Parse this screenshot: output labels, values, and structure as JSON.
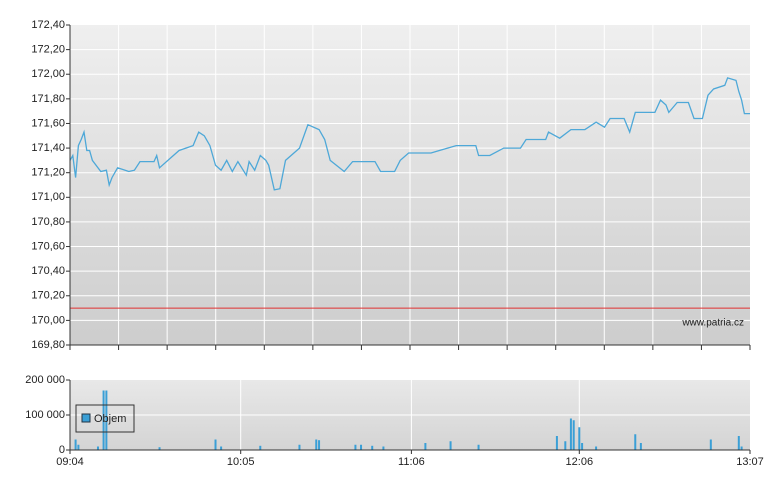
{
  "chart_data": [
    {
      "type": "line",
      "color": "#4ea8d8",
      "xlim": [
        "09:04",
        "13:07"
      ],
      "ylim": [
        169.8,
        172.4
      ],
      "yticks": [
        {
          "value": 169.8,
          "label": "169,80"
        },
        {
          "value": 170.0,
          "label": "170,00"
        },
        {
          "value": 170.2,
          "label": "170,20"
        },
        {
          "value": 170.4,
          "label": "170,40"
        },
        {
          "value": 170.6,
          "label": "170,60"
        },
        {
          "value": 170.8,
          "label": "170,80"
        },
        {
          "value": 171.0,
          "label": "171,00"
        },
        {
          "value": 171.2,
          "label": "171,20"
        },
        {
          "value": 171.4,
          "label": "171,40"
        },
        {
          "value": 171.6,
          "label": "171,60"
        },
        {
          "value": 171.8,
          "label": "171,80"
        },
        {
          "value": 172.0,
          "label": "172,00"
        },
        {
          "value": 172.2,
          "label": "172,20"
        },
        {
          "value": 172.4,
          "label": "172,40"
        }
      ],
      "grid": true,
      "reference_line": {
        "value": 170.1,
        "color": "#e03030"
      },
      "annotation": "www.patria.cz",
      "x": [
        "09:04",
        "09:05",
        "09:06",
        "09:07",
        "09:08",
        "09:09",
        "09:10",
        "09:11",
        "09:12",
        "09:15",
        "09:17",
        "09:18",
        "09:19",
        "09:21",
        "09:25",
        "09:27",
        "09:29",
        "09:34",
        "09:35",
        "09:36",
        "09:40",
        "09:43",
        "09:48",
        "09:50",
        "09:52",
        "09:54",
        "09:56",
        "09:58",
        "10:00",
        "10:02",
        "10:04",
        "10:07",
        "10:08",
        "10:10",
        "10:12",
        "10:14",
        "10:15",
        "10:17",
        "10:19",
        "10:21",
        "10:26",
        "10:29",
        "10:33",
        "10:35",
        "10:37",
        "10:42",
        "10:45",
        "10:53",
        "10:55",
        "11:00",
        "11:02",
        "11:05",
        "11:13",
        "11:16",
        "11:22",
        "11:29",
        "11:30",
        "11:34",
        "11:39",
        "11:45",
        "11:47",
        "11:54",
        "11:55",
        "11:59",
        "12:03",
        "12:08",
        "12:12",
        "12:15",
        "12:17",
        "12:22",
        "12:24",
        "12:26",
        "12:33",
        "12:35",
        "12:37",
        "12:38",
        "12:41",
        "12:45",
        "12:47",
        "12:50",
        "12:52",
        "12:54",
        "12:58",
        "12:59",
        "13:02",
        "13:03",
        "13:04",
        "13:05",
        "13:07"
      ],
      "values": [
        171.3,
        171.34,
        171.16,
        171.42,
        171.47,
        171.53,
        171.38,
        171.38,
        171.3,
        171.21,
        171.22,
        171.1,
        171.16,
        171.24,
        171.21,
        171.22,
        171.29,
        171.29,
        171.34,
        171.24,
        171.32,
        171.38,
        171.42,
        171.53,
        171.5,
        171.42,
        171.26,
        171.22,
        171.3,
        171.21,
        171.29,
        171.18,
        171.29,
        171.22,
        171.34,
        171.3,
        171.26,
        171.06,
        171.07,
        171.3,
        171.4,
        171.59,
        171.55,
        171.47,
        171.3,
        171.21,
        171.29,
        171.29,
        171.21,
        171.21,
        171.3,
        171.36,
        171.36,
        171.38,
        171.42,
        171.42,
        171.34,
        171.34,
        171.4,
        171.4,
        171.47,
        171.47,
        171.53,
        171.48,
        171.55,
        171.55,
        171.61,
        171.57,
        171.64,
        171.64,
        171.53,
        171.69,
        171.69,
        171.79,
        171.75,
        171.69,
        171.77,
        171.77,
        171.64,
        171.64,
        171.83,
        171.88,
        171.91,
        171.97,
        171.95,
        171.86,
        171.79,
        171.68,
        171.68
      ]
    },
    {
      "type": "bar",
      "xlim": [
        "09:04",
        "13:07"
      ],
      "xticks": [
        "09:04",
        "10:05",
        "11:06",
        "12:06",
        "13:07"
      ],
      "ylim": [
        0,
        200000
      ],
      "yticks": [
        0,
        {
          "value": 100000,
          "label": "100 000"
        },
        {
          "value": 200000,
          "label": "200 000"
        }
      ],
      "grid": true,
      "legend": "top-left",
      "series": [
        {
          "name": "Objem",
          "color": "#3a9fd6",
          "x": [
            "09:06",
            "09:07",
            "09:14",
            "09:16",
            "09:17",
            "09:36",
            "09:56",
            "09:58",
            "10:12",
            "10:26",
            "10:32",
            "10:33",
            "10:46",
            "10:48",
            "10:52",
            "10:56",
            "11:11",
            "11:20",
            "11:30",
            "11:58",
            "12:01",
            "12:03",
            "12:04",
            "12:06",
            "12:07",
            "12:12",
            "12:26",
            "12:28",
            "12:53",
            "13:03",
            "13:04"
          ],
          "values": [
            30000,
            15000,
            10000,
            170000,
            170000,
            8000,
            30000,
            10000,
            12000,
            15000,
            30000,
            28000,
            15000,
            15000,
            12000,
            10000,
            20000,
            25000,
            15000,
            40000,
            25000,
            90000,
            85000,
            65000,
            20000,
            10000,
            45000,
            20000,
            30000,
            40000,
            10000
          ]
        }
      ]
    }
  ]
}
